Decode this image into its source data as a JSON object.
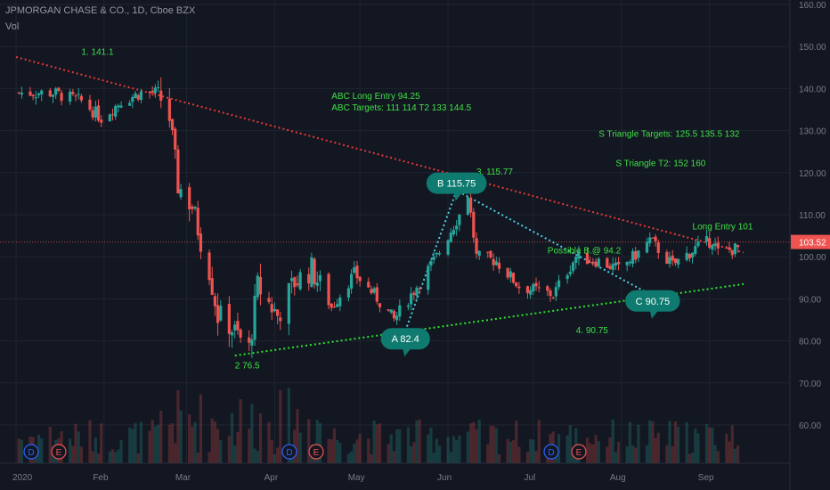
{
  "header": {
    "symbol": "JPMORGAN CHASE & CO., 1D, Cboe BZX",
    "indicator": "Vol"
  },
  "colors": {
    "background": "#131722",
    "grid": "#1f2430",
    "up": "#26a69a",
    "down": "#ef5350",
    "annotation_green": "#3ee045",
    "resistance": "#e53935",
    "support": "#2ee52e",
    "abc_path": "#4dd0e1",
    "bubble": "#0f7a6f",
    "price_tag": "#ef5350"
  },
  "markers": [
    {
      "letter": "D",
      "color": "#2962ff"
    },
    {
      "letter": "E",
      "color": "#ef5350"
    },
    {
      "letter": "D",
      "color": "#2962ff"
    },
    {
      "letter": "E",
      "color": "#ef5350"
    },
    {
      "letter": "D",
      "color": "#2962ff"
    },
    {
      "letter": "E",
      "color": "#ef5350"
    }
  ],
  "chart_data": {
    "type": "candlestick",
    "title": "JPMORGAN CHASE & CO., 1D, Cboe BZX",
    "y_axis": {
      "min": 52,
      "max": 162,
      "ticks": [
        60,
        70,
        80,
        90,
        100,
        110,
        120,
        130,
        140,
        150,
        160
      ],
      "tick_labels": [
        "60.00",
        "70.00",
        "80.00",
        "90.00",
        "100.00",
        "110.00",
        "120.00",
        "130.00",
        "140.00",
        "150.00",
        "160.00"
      ],
      "position": "right"
    },
    "x_axis": {
      "labels": [
        "2020",
        "Feb",
        "Mar",
        "Apr",
        "May",
        "Jun",
        "Jul",
        "Aug",
        "Sep"
      ],
      "start": "2020-01-01",
      "end": "2020-09-13"
    },
    "last_price": "103.52",
    "last_price_value": 103.52,
    "candle_anchors": [
      [
        "2020-01-02",
        139
      ],
      [
        "2020-01-14",
        139
      ],
      [
        "2020-01-24",
        137
      ],
      [
        "2020-01-31",
        133
      ],
      [
        "2020-02-07",
        137
      ],
      [
        "2020-02-14",
        139
      ],
      [
        "2020-02-20",
        139
      ],
      [
        "2020-02-24",
        133
      ],
      [
        "2020-02-27",
        117
      ],
      [
        "2020-03-03",
        112
      ],
      [
        "2020-03-06",
        104
      ],
      [
        "2020-03-09",
        97
      ],
      [
        "2020-03-12",
        86
      ],
      [
        "2020-03-16",
        84
      ],
      [
        "2020-03-18",
        82
      ],
      [
        "2020-03-23",
        78
      ],
      [
        "2020-03-26",
        93
      ],
      [
        "2020-04-02",
        86
      ],
      [
        "2020-04-08",
        94
      ],
      [
        "2020-04-14",
        97
      ],
      [
        "2020-04-21",
        88
      ],
      [
        "2020-04-29",
        96
      ],
      [
        "2020-05-06",
        91
      ],
      [
        "2020-05-13",
        85
      ],
      [
        "2020-05-20",
        92
      ],
      [
        "2020-05-28",
        100
      ],
      [
        "2020-06-05",
        110
      ],
      [
        "2020-06-08",
        115
      ],
      [
        "2020-06-11",
        100
      ],
      [
        "2020-06-18",
        99
      ],
      [
        "2020-06-26",
        93
      ],
      [
        "2020-07-08",
        91
      ],
      [
        "2020-07-16",
        100
      ],
      [
        "2020-07-24",
        99
      ],
      [
        "2020-07-31",
        97
      ],
      [
        "2020-08-07",
        101
      ],
      [
        "2020-08-11",
        104
      ],
      [
        "2020-08-19",
        98
      ],
      [
        "2020-08-27",
        102
      ],
      [
        "2020-09-02",
        104
      ],
      [
        "2020-09-04",
        101
      ],
      [
        "2020-09-11",
        102
      ]
    ],
    "trendlines": [
      {
        "name": "resistance",
        "from": [
          "2020-01-01",
          147.5
        ],
        "to": [
          "2020-09-13",
          101
        ],
        "style": "dotted",
        "color": "#e53935"
      },
      {
        "name": "support",
        "from": [
          "2020-03-18",
          76.5
        ],
        "to": [
          "2020-09-13",
          93.5
        ],
        "style": "dotted",
        "color": "#2ee52e"
      },
      {
        "name": "abc",
        "points": [
          [
            "2020-05-17",
            82.4
          ],
          [
            "2020-06-04",
            115.75
          ],
          [
            "2020-08-12",
            90.75
          ]
        ],
        "style": "dotted",
        "color": "#4dd0e1"
      }
    ],
    "price_line": 103.52,
    "labels": [
      {
        "id": "lbl1",
        "text": "1. 141.1",
        "at": [
          "2020-01-24",
          148
        ]
      },
      {
        "id": "lbl2",
        "text": "2  76.5",
        "at": [
          "2020-03-18",
          73.5
        ]
      },
      {
        "id": "lbl3",
        "text": "3. 115.77",
        "at": [
          "2020-06-11",
          119.5
        ]
      },
      {
        "id": "lbl4",
        "text": "4. 90.75",
        "at": [
          "2020-07-16",
          81.8
        ]
      },
      {
        "id": "lbl5",
        "text": "ABC Long Entry  94.25",
        "at": [
          "2020-04-21",
          137.5
        ]
      },
      {
        "id": "lbl6",
        "text": "ABC Targets:  111  114  T2 133  144.5",
        "at": [
          "2020-04-21",
          134.8
        ]
      },
      {
        "id": "lbl7",
        "text": "S Triangle Targets:  125.5    135.5    132",
        "at": [
          "2020-07-24",
          128.5
        ]
      },
      {
        "id": "lbl8",
        "text": "S Triangle T2:   152   160",
        "at": [
          "2020-07-30",
          121.5
        ]
      },
      {
        "id": "lbl9",
        "text": "Long Entry  101",
        "at": [
          "2020-08-26",
          106.5
        ]
      },
      {
        "id": "lbl10",
        "text": "Possible B.@ 94.2",
        "at": [
          "2020-07-06",
          100.8
        ]
      }
    ],
    "bubbles": [
      {
        "text": "A 82.4",
        "at": [
          "2020-05-17",
          80.5
        ],
        "tail": "down"
      },
      {
        "text": "B 115.75",
        "at": [
          "2020-06-04",
          117.5
        ],
        "tail": "down"
      },
      {
        "text": "C 90.75",
        "at": [
          "2020-08-12",
          89.5
        ],
        "tail": "down"
      }
    ]
  }
}
